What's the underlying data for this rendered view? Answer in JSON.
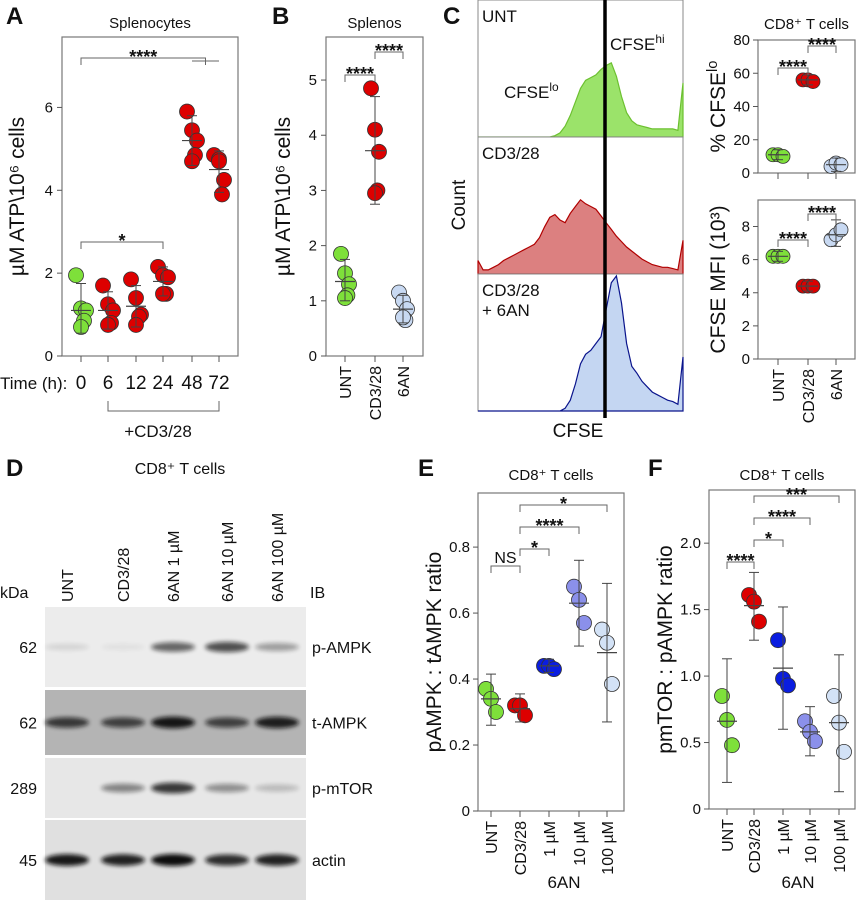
{
  "panels": {
    "A": {
      "letter": "A",
      "title": "Splenocytes"
    },
    "B": {
      "letter": "B",
      "title": "Splenos"
    },
    "C": {
      "letter": "C"
    },
    "D": {
      "letter": "D"
    },
    "E": {
      "letter": "E"
    },
    "F": {
      "letter": "F"
    }
  },
  "colors": {
    "unt": "#7ee03a",
    "cd3": "#dd0000",
    "an_light": "#c8d9f2",
    "an1": "#0a1de0",
    "an10": "#8b90ea",
    "an100": "#d3e2f6",
    "hist_unt": "#9be36a",
    "hist_cd3": "#dc8080",
    "hist_6an": "#c4d6f2"
  },
  "chart_data": [
    {
      "id": "A",
      "type": "scatter",
      "title": "Splenocytes",
      "ylabel": "µM ATP\\10⁶ cells",
      "xlabel_prefix": "Time (h):",
      "categories": [
        "0",
        "6",
        "12",
        "24",
        "48",
        "72"
      ],
      "ylim": [
        0,
        7.7
      ],
      "yticks": [
        "0",
        "2",
        "4",
        "6"
      ],
      "group_label": "+CD3/28",
      "series": [
        {
          "points": [
            1.95,
            1.15,
            1.1,
            0.85,
            0.7
          ],
          "mean": 1.1,
          "err": [
            0.55,
            1.75
          ],
          "color": "#7ee03a"
        },
        {
          "points": [
            1.7,
            1.25,
            1.1,
            0.8,
            0.75
          ],
          "mean": 1.1,
          "err": [
            0.65,
            1.55
          ],
          "color": "#dd0000"
        },
        {
          "points": [
            1.85,
            1.4,
            1.0,
            0.95,
            0.75
          ],
          "mean": 1.2,
          "err": [
            0.7,
            1.7
          ],
          "color": "#dd0000"
        },
        {
          "points": [
            2.15,
            1.95,
            1.9,
            1.5,
            1.5
          ],
          "mean": 1.8,
          "err": [
            1.45,
            2.15
          ],
          "color": "#dd0000"
        },
        {
          "points": [
            5.9,
            5.45,
            5.2,
            4.85,
            4.7
          ],
          "mean": 5.2,
          "err": [
            4.6,
            5.8
          ],
          "color": "#dd0000"
        },
        {
          "points": [
            4.85,
            4.75,
            4.25,
            3.9,
            4.7
          ],
          "mean": 4.5,
          "err": [
            3.95,
            4.95
          ],
          "color": "#dd0000"
        }
      ],
      "brackets": [
        {
          "from": 0,
          "to": 3,
          "label": "*"
        },
        {
          "from": 0,
          "to": 4.5,
          "label": "****"
        }
      ]
    },
    {
      "id": "B",
      "type": "scatter",
      "title": "Splenos",
      "ylabel": "µM ATP\\10⁶ cells",
      "categories": [
        "UNT",
        "CD3/28",
        "6AN"
      ],
      "ylim": [
        0,
        5.78
      ],
      "yticks": [
        "0",
        "1",
        "2",
        "3",
        "4",
        "5"
      ],
      "series": [
        {
          "points": [
            1.85,
            1.5,
            1.3,
            1.1,
            1.05
          ],
          "mean": 1.35,
          "err": [
            1.0,
            1.75
          ],
          "color": "#7ee03a"
        },
        {
          "points": [
            4.85,
            4.1,
            3.7,
            3.0,
            2.95
          ],
          "mean": 3.72,
          "err": [
            2.75,
            4.7
          ],
          "color": "#dd0000"
        },
        {
          "points": [
            1.15,
            1.0,
            0.85,
            0.65,
            0.7
          ],
          "mean": 0.85,
          "err": [
            0.6,
            1.1
          ],
          "color": "#c8d9f2"
        }
      ],
      "brackets": [
        {
          "from": 0,
          "to": 1,
          "label": "****"
        },
        {
          "from": 1,
          "to": 2,
          "label": "****"
        }
      ]
    },
    {
      "id": "C-hist",
      "type": "area",
      "xlabel": "CFSE",
      "ylabel": "Count",
      "gate_labels": {
        "lo": {
          "main": "CFSE",
          "sup": "lo"
        },
        "hi": {
          "main": "CFSE",
          "sup": "hi"
        }
      },
      "series": [
        {
          "name": "UNT",
          "color": "#9be36a",
          "line": "#6cc030",
          "values": [
            0,
            0,
            0,
            0,
            0,
            0,
            0,
            0,
            0,
            0,
            0,
            0,
            0,
            0,
            0,
            0.01,
            0.03,
            0.08,
            0.16,
            0.26,
            0.36,
            0.42,
            0.44,
            0.46,
            0.5,
            0.53,
            0.55,
            0.45,
            0.3,
            0.18,
            0.12,
            0.09,
            0.08,
            0.07,
            0.06,
            0.06,
            0.06,
            0.06,
            0.06,
            0.05,
            0.4
          ]
        },
        {
          "name": "CD3/28",
          "color": "#dc8080",
          "line": "#b00000",
          "values": [
            0.1,
            0.03,
            0.03,
            0.05,
            0.07,
            0.1,
            0.12,
            0.14,
            0.16,
            0.18,
            0.2,
            0.22,
            0.27,
            0.35,
            0.42,
            0.44,
            0.4,
            0.38,
            0.45,
            0.5,
            0.55,
            0.52,
            0.5,
            0.48,
            0.43,
            0.38,
            0.33,
            0.28,
            0.24,
            0.2,
            0.17,
            0.14,
            0.11,
            0.09,
            0.07,
            0.06,
            0.05,
            0.05,
            0.04,
            0.03,
            0.25
          ]
        },
        {
          "name": "CD3/28\n+ 6AN",
          "name_line1": "CD3/28",
          "name_line2": "+ 6AN",
          "color": "#c4d6f2",
          "line": "#0a148c",
          "values": [
            0,
            0,
            0,
            0,
            0,
            0,
            0,
            0,
            0,
            0,
            0,
            0,
            0,
            0,
            0,
            0,
            0,
            0.02,
            0.08,
            0.2,
            0.35,
            0.42,
            0.45,
            0.5,
            0.55,
            0.75,
            0.95,
            1.0,
            0.8,
            0.5,
            0.33,
            0.28,
            0.22,
            0.18,
            0.14,
            0.12,
            0.1,
            0.08,
            0.07,
            0.05,
            0.4
          ]
        }
      ]
    },
    {
      "id": "C-pct",
      "type": "scatter",
      "title": "CD8⁺ T cells",
      "ylabel": {
        "main": "% CFSE",
        "sup": "lo"
      },
      "categories": [
        "UNT",
        "CD3/28",
        "6AN"
      ],
      "ylim": [
        0,
        80
      ],
      "yticks": [
        "0",
        "20",
        "40",
        "60",
        "80"
      ],
      "series": [
        {
          "points": [
            11,
            11,
            10
          ],
          "mean": 11,
          "err": [
            8,
            14
          ],
          "color": "#7ee03a"
        },
        {
          "points": [
            56,
            56,
            55
          ],
          "mean": 56,
          "err": [
            53,
            59
          ],
          "color": "#dd0000"
        },
        {
          "points": [
            4,
            6,
            5
          ],
          "mean": 5,
          "err": [
            1,
            9
          ],
          "color": "#c8d9f2"
        }
      ],
      "brackets": [
        {
          "from": 0,
          "to": 1,
          "label": "****"
        },
        {
          "from": 1,
          "to": 2,
          "label": "****"
        }
      ]
    },
    {
      "id": "C-mfi",
      "type": "scatter",
      "ylabel": "CFSE MFI (10³)",
      "categories": [
        "UNT",
        "CD3/28",
        "6AN"
      ],
      "ylim": [
        0,
        9.6
      ],
      "yticks": [
        "0",
        "2",
        "4",
        "6",
        "8"
      ],
      "series": [
        {
          "points": [
            6.2,
            6.2,
            6.2
          ],
          "mean": 6.2,
          "err": [
            5.9,
            6.5
          ],
          "color": "#7ee03a"
        },
        {
          "points": [
            4.4,
            4.4,
            4.4
          ],
          "mean": 4.4,
          "err": [
            4.1,
            4.7
          ],
          "color": "#dd0000"
        },
        {
          "points": [
            7.2,
            7.5,
            7.8
          ],
          "mean": 7.5,
          "err": [
            6.8,
            8.4
          ],
          "color": "#c8d9f2"
        }
      ],
      "brackets": [
        {
          "from": 0,
          "to": 1,
          "label": "****"
        },
        {
          "from": 1,
          "to": 2,
          "label": "****"
        }
      ]
    },
    {
      "id": "E",
      "type": "scatter",
      "title": "CD8⁺ T cells",
      "ylabel": "pAMPK : tAMPK ratio",
      "categories": [
        "UNT",
        "CD3/28",
        "1 µM",
        "10 µM",
        "100 µM"
      ],
      "group_label": "6AN",
      "ylim": [
        0,
        0.964
      ],
      "yticks": [
        "0",
        "0.2",
        "0.4",
        "0.6",
        "0.8"
      ],
      "series": [
        {
          "points": [
            0.37,
            0.34,
            0.3
          ],
          "mean": 0.34,
          "err": [
            0.26,
            0.415
          ],
          "color": "#7ee03a"
        },
        {
          "points": [
            0.32,
            0.32,
            0.29
          ],
          "mean": 0.31,
          "err": [
            0.27,
            0.355
          ],
          "color": "#dd0000"
        },
        {
          "points": [
            0.44,
            0.44,
            0.43
          ],
          "mean": 0.44,
          "err": [
            0.42,
            0.46
          ],
          "color": "#0a1de0"
        },
        {
          "points": [
            0.68,
            0.64,
            0.57
          ],
          "mean": 0.63,
          "err": [
            0.5,
            0.76
          ],
          "color": "#8b90ea"
        },
        {
          "points": [
            0.55,
            0.51,
            0.385
          ],
          "mean": 0.48,
          "err": [
            0.27,
            0.69
          ],
          "color": "#d3e2f6"
        }
      ],
      "brackets": [
        {
          "from": 0,
          "to": 1,
          "label": "NS"
        },
        {
          "from": 1,
          "to": 2,
          "label": "*"
        },
        {
          "from": 1,
          "to": 3,
          "label": "****"
        },
        {
          "from": 1,
          "to": 4,
          "label": "*"
        }
      ]
    },
    {
      "id": "F",
      "type": "scatter",
      "title": "CD8⁺ T cells",
      "ylabel": "pmTOR : pAMPK ratio",
      "categories": [
        "UNT",
        "CD3/28",
        "1 µM",
        "10 µM",
        "100 µM"
      ],
      "group_label": "6AN",
      "ylim": [
        0,
        2.4
      ],
      "yticks": [
        "0",
        "0.5",
        "1.0",
        "1.5",
        "2.0"
      ],
      "series": [
        {
          "points": [
            0.85,
            0.67,
            0.48
          ],
          "mean": 0.66,
          "err": [
            0.2,
            1.13
          ],
          "color": "#7ee03a"
        },
        {
          "points": [
            1.61,
            1.56,
            1.41
          ],
          "mean": 1.53,
          "err": [
            1.27,
            1.78
          ],
          "color": "#dd0000"
        },
        {
          "points": [
            1.27,
            0.98,
            0.93
          ],
          "mean": 1.06,
          "err": [
            0.6,
            1.52
          ],
          "color": "#0a1de0"
        },
        {
          "points": [
            0.66,
            0.58,
            0.51
          ],
          "mean": 0.58,
          "err": [
            0.4,
            0.77
          ],
          "color": "#8b90ea"
        },
        {
          "points": [
            0.85,
            0.65,
            0.43
          ],
          "mean": 0.65,
          "err": [
            0.13,
            1.16
          ],
          "color": "#d3e2f6"
        }
      ],
      "brackets": [
        {
          "from": 0,
          "to": 1,
          "label": "****"
        },
        {
          "from": 1,
          "to": 2,
          "label": "*"
        },
        {
          "from": 1,
          "to": 3,
          "label": "****"
        },
        {
          "from": 1,
          "to": 4,
          "label": "***"
        }
      ]
    }
  ],
  "blot": {
    "title": "CD8⁺ T cells",
    "kda_label": "kDa",
    "ib_label": "IB",
    "lanes": [
      "UNT",
      "CD3/28",
      "6AN 1 µM",
      "6AN 10 µM",
      "6AN 100 µM"
    ],
    "rows": [
      {
        "kda": "62",
        "target": "p-AMPK",
        "background": "#ececec",
        "intensity": [
          0.1,
          0.05,
          0.6,
          0.7,
          0.35
        ]
      },
      {
        "kda": "62",
        "target": "t-AMPK",
        "background": "#b4b4b4",
        "intensity": [
          0.75,
          0.7,
          0.95,
          0.7,
          0.9
        ]
      },
      {
        "kda": "289",
        "target": "p-mTOR",
        "background": "#e7e7e7",
        "intensity": [
          0,
          0.45,
          0.8,
          0.4,
          0.2
        ]
      },
      {
        "kda": "45",
        "target": "actin",
        "background": "#e0e0e0",
        "intensity": [
          0.95,
          0.9,
          1.0,
          0.85,
          0.9
        ]
      }
    ]
  }
}
